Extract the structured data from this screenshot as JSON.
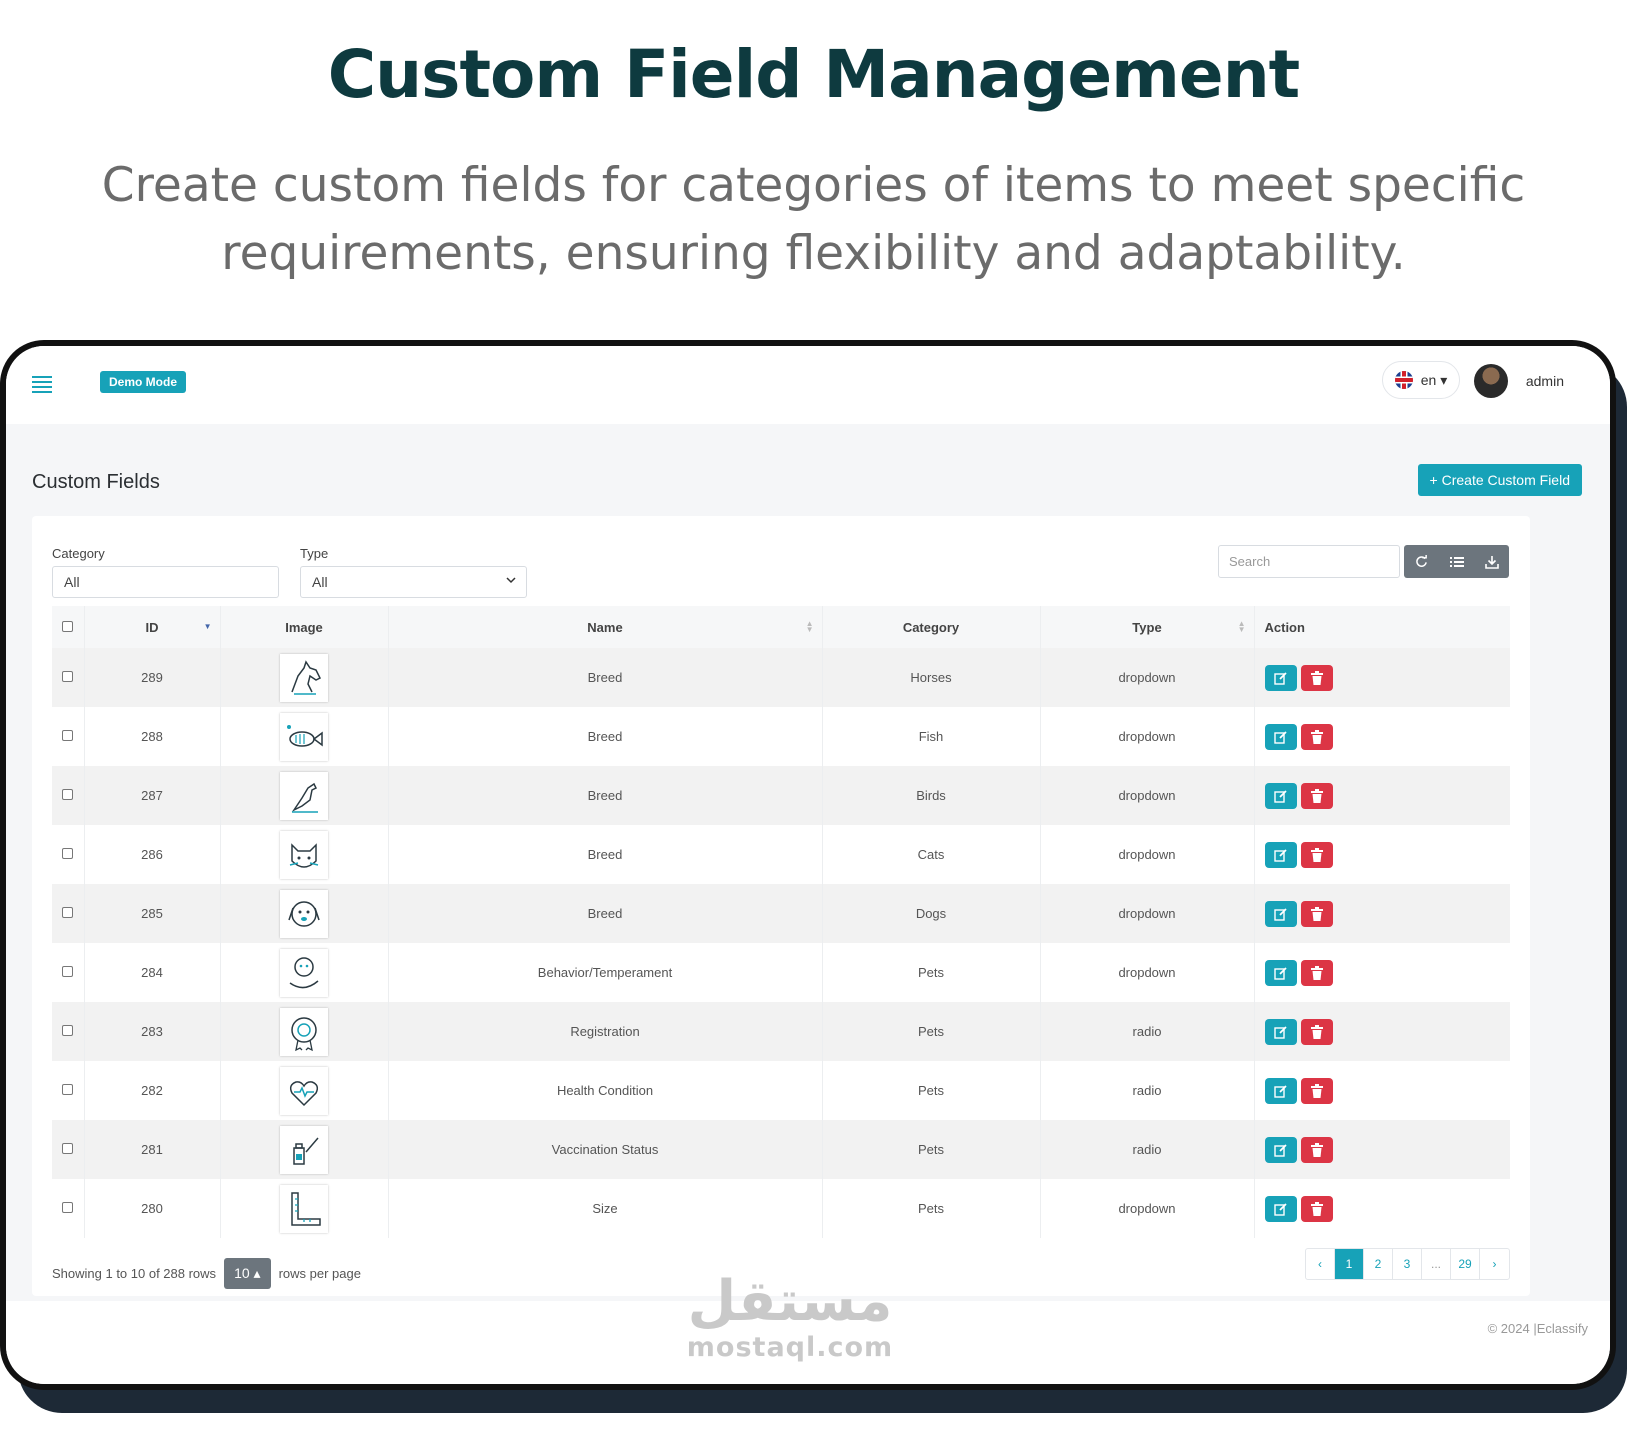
{
  "hero": {
    "title": "Custom Field Management",
    "subtitle": "Create custom fields for categories of items to meet specific requirements, ensuring flexibility and adaptability."
  },
  "topbar": {
    "demo_badge": "Demo Mode",
    "language": "en ▾",
    "username": "admin"
  },
  "page": {
    "title": "Custom Fields",
    "create_button": "+ Create Custom Field"
  },
  "filters": {
    "category_label": "Category",
    "category_value": "All",
    "type_label": "Type",
    "type_value": "All",
    "search_placeholder": "Search"
  },
  "table": {
    "headers": [
      "ID",
      "Image",
      "Name",
      "Category",
      "Type",
      "Action"
    ],
    "rows": [
      {
        "id": "289",
        "icon": "horse-icon",
        "name": "Breed",
        "category": "Horses",
        "type": "dropdown"
      },
      {
        "id": "288",
        "icon": "fish-icon",
        "name": "Breed",
        "category": "Fish",
        "type": "dropdown"
      },
      {
        "id": "287",
        "icon": "bird-icon",
        "name": "Breed",
        "category": "Birds",
        "type": "dropdown"
      },
      {
        "id": "286",
        "icon": "cat-icon",
        "name": "Breed",
        "category": "Cats",
        "type": "dropdown"
      },
      {
        "id": "285",
        "icon": "dog-icon",
        "name": "Breed",
        "category": "Dogs",
        "type": "dropdown"
      },
      {
        "id": "284",
        "icon": "pet-hand-icon",
        "name": "Behavior/Temperament",
        "category": "Pets",
        "type": "dropdown"
      },
      {
        "id": "283",
        "icon": "certificate-icon",
        "name": "Registration",
        "category": "Pets",
        "type": "radio"
      },
      {
        "id": "282",
        "icon": "heart-pulse-icon",
        "name": "Health Condition",
        "category": "Pets",
        "type": "radio"
      },
      {
        "id": "281",
        "icon": "vaccine-icon",
        "name": "Vaccination Status",
        "category": "Pets",
        "type": "radio"
      },
      {
        "id": "280",
        "icon": "ruler-icon",
        "name": "Size",
        "category": "Pets",
        "type": "dropdown"
      }
    ]
  },
  "pagination": {
    "showing_text": "Showing 1 to 10 of 288 rows",
    "page_size": "10",
    "rows_per_page_text": "rows per page",
    "prev": "‹",
    "pages": [
      "1",
      "2",
      "3",
      "...",
      "29"
    ],
    "next": "›",
    "active_page": "1"
  },
  "footer": {
    "copyright": "© 2024 |Eclassify"
  },
  "watermark": {
    "arabic": "مستقل",
    "latin": "mostaql.com"
  },
  "colors": {
    "accent": "#17a2b8",
    "danger": "#dc3545",
    "title": "#0e3a3f"
  }
}
